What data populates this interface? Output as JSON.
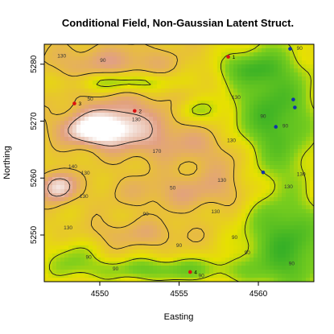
{
  "chart_data": {
    "type": "heatmap",
    "title": "Conditional Field, Non-Gaussian Latent Struct.",
    "xlabel": "Easting",
    "ylabel": "Northing",
    "xlim": [
      4546.5,
      4563.5
    ],
    "ylim": [
      5241.8,
      5283.5
    ],
    "x_ticks": [
      4550,
      4555,
      4560
    ],
    "y_ticks": [
      5250,
      5260,
      5270,
      5280
    ],
    "grid": false,
    "legend": "none",
    "colors": {
      "low": "#33b733",
      "mid": "#e8e400",
      "high": "#e6b58e",
      "peak": "#ffffff",
      "contour": "#1a1a1a",
      "point_red": "#dd1111",
      "point_blue": "#1133aa"
    },
    "contour_labels": [
      {
        "x": 4547.6,
        "y": 5281.2,
        "text": "130"
      },
      {
        "x": 4550.2,
        "y": 5280.4,
        "text": "90"
      },
      {
        "x": 4558.6,
        "y": 5273.9,
        "text": "130"
      },
      {
        "x": 4560.3,
        "y": 5270.6,
        "text": "90"
      },
      {
        "x": 4562.6,
        "y": 5282.5,
        "text": "90"
      },
      {
        "x": 4549.4,
        "y": 5273.6,
        "text": "50"
      },
      {
        "x": 4552.3,
        "y": 5270.0,
        "text": "130"
      },
      {
        "x": 4553.6,
        "y": 5264.4,
        "text": "170"
      },
      {
        "x": 4558.3,
        "y": 5266.3,
        "text": "130"
      },
      {
        "x": 4561.7,
        "y": 5268.9,
        "text": "90"
      },
      {
        "x": 4548.3,
        "y": 5261.7,
        "text": "140"
      },
      {
        "x": 4549.1,
        "y": 5260.6,
        "text": "130"
      },
      {
        "x": 4554.6,
        "y": 5258.0,
        "text": "50"
      },
      {
        "x": 4557.7,
        "y": 5259.3,
        "text": "130"
      },
      {
        "x": 4562.7,
        "y": 5260.4,
        "text": "130"
      },
      {
        "x": 4561.9,
        "y": 5258.2,
        "text": "130"
      },
      {
        "x": 4549.0,
        "y": 5256.5,
        "text": "130"
      },
      {
        "x": 4552.9,
        "y": 5253.4,
        "text": "90"
      },
      {
        "x": 4557.3,
        "y": 5253.8,
        "text": "130"
      },
      {
        "x": 4548.0,
        "y": 5251.0,
        "text": "130"
      },
      {
        "x": 4549.3,
        "y": 5245.8,
        "text": "90"
      },
      {
        "x": 4551.0,
        "y": 5243.8,
        "text": "90"
      },
      {
        "x": 4555.0,
        "y": 5247.9,
        "text": "90"
      },
      {
        "x": 4558.5,
        "y": 5249.3,
        "text": "90"
      },
      {
        "x": 4559.3,
        "y": 5246.6,
        "text": "90"
      },
      {
        "x": 4556.4,
        "y": 5242.6,
        "text": "90"
      },
      {
        "x": 4562.1,
        "y": 5244.7,
        "text": "90"
      }
    ],
    "points": [
      {
        "x": 4558.1,
        "y": 5281.3,
        "label": "1",
        "color": "red"
      },
      {
        "x": 4552.2,
        "y": 5271.8,
        "label": "2",
        "color": "red"
      },
      {
        "x": 4548.4,
        "y": 5273.1,
        "label": "3",
        "color": "red"
      },
      {
        "x": 4555.7,
        "y": 5243.5,
        "label": "4",
        "color": "red"
      },
      {
        "x": 4562.0,
        "y": 5282.7,
        "label": "",
        "color": "blue"
      },
      {
        "x": 4562.2,
        "y": 5273.8,
        "label": "",
        "color": "blue"
      },
      {
        "x": 4562.3,
        "y": 5272.4,
        "label": "",
        "color": "blue"
      },
      {
        "x": 4561.1,
        "y": 5269.0,
        "label": "",
        "color": "blue"
      },
      {
        "x": 4560.3,
        "y": 5261.0,
        "label": "",
        "color": "blue"
      }
    ]
  }
}
